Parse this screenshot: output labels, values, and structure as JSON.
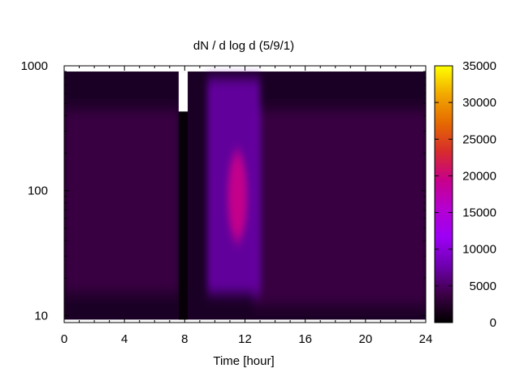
{
  "chart_data": {
    "type": "heatmap",
    "title": "dN / d log d (5/9/1)",
    "xlabel": "Time [hour]",
    "ylabel": "",
    "x_range": [
      0,
      24
    ],
    "y_range": [
      8.8,
      1000
    ],
    "y_scale": "log",
    "x_ticks": [
      0,
      4,
      8,
      12,
      16,
      20,
      24
    ],
    "y_ticks": [
      10,
      100,
      1000
    ],
    "colorbar": {
      "range": [
        0,
        35000
      ],
      "ticks": [
        0,
        5000,
        10000,
        15000,
        20000,
        25000,
        30000,
        35000
      ],
      "colors": [
        "#000000",
        "#3d0046",
        "#6f00b0",
        "#9d00f5",
        "#b500d0",
        "#c8008a",
        "#d72c2c",
        "#e56a00",
        "#f2a800",
        "#ffff00"
      ],
      "placement": "right"
    },
    "data_coverage": {
      "x_range": [
        0,
        24
      ],
      "y_range": [
        9.3,
        900
      ],
      "missing_interval_x": [
        7.6,
        8.2
      ],
      "missing_interval_y_min": 430
    },
    "features": [
      {
        "name": "background",
        "x_range": [
          0,
          7.6
        ],
        "y_range": [
          15,
          450
        ],
        "value": 4000
      },
      {
        "name": "evening_background",
        "x_range": [
          12.5,
          24
        ],
        "y_range": [
          12,
          450
        ],
        "value": 2500
      },
      {
        "name": "growth_event",
        "x_range": [
          9.5,
          13
        ],
        "y_range": [
          15,
          800
        ],
        "value": 9000
      },
      {
        "name": "peak",
        "x": 11.5,
        "y": 90,
        "value": 20000
      }
    ]
  }
}
